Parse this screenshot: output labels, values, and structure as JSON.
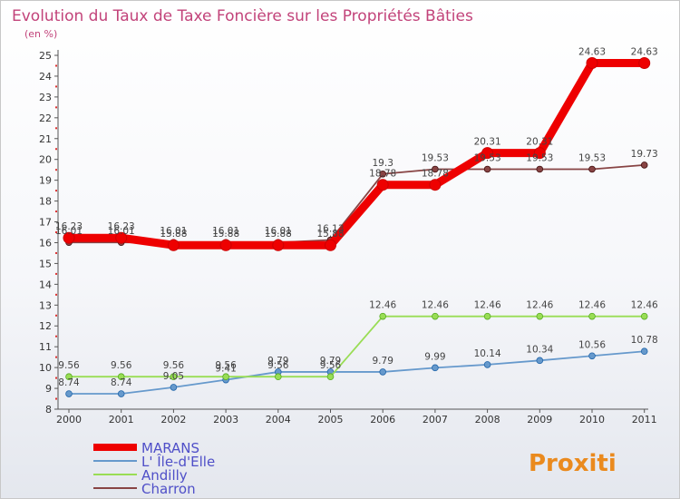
{
  "chart_data": {
    "type": "line",
    "title": "Evolution du Taux de Taxe Foncière sur les Propriétés Bâties",
    "subtitle": "(en %)",
    "x": [
      "2000",
      "2001",
      "2002",
      "2003",
      "2004",
      "2005",
      "2006",
      "2007",
      "2008",
      "2009",
      "2010",
      "2011"
    ],
    "ylim": [
      8,
      25
    ],
    "yticks": [
      "8",
      "9",
      "10",
      "11",
      "12",
      "13",
      "14",
      "15",
      "16",
      "17",
      "18",
      "19",
      "20",
      "21",
      "22",
      "23",
      "24",
      "25"
    ],
    "grid": false,
    "series": [
      {
        "name": "MARANS",
        "color": "#ee0000",
        "values": [
          16.23,
          16.23,
          15.88,
          15.88,
          15.88,
          15.88,
          18.78,
          18.78,
          20.31,
          20.31,
          24.63,
          24.63
        ],
        "labels": [
          "16.23",
          "16.23",
          "15.88",
          "15.88",
          "15.88",
          "15.88",
          "18.78",
          "18.78",
          "20.31",
          "20.31",
          "24.63",
          "24.63"
        ]
      },
      {
        "name": "L' Île-d'Elle",
        "color": "#6699cc",
        "values": [
          8.74,
          8.74,
          9.05,
          9.41,
          9.79,
          9.79,
          9.79,
          9.99,
          10.14,
          10.34,
          10.56,
          10.78
        ],
        "labels": [
          "8.74",
          "8.74",
          "9.05",
          "9.41",
          "9.79",
          "9.79",
          "9.79",
          "9.99",
          "10.14",
          "10.34",
          "10.56",
          "10.78"
        ]
      },
      {
        "name": "Andilly",
        "color": "#99dd55",
        "values": [
          9.56,
          9.56,
          9.56,
          9.56,
          9.56,
          9.56,
          12.46,
          12.46,
          12.46,
          12.46,
          12.46,
          12.46
        ],
        "labels": [
          "9.56",
          "9.56",
          "9.56",
          "9.56",
          "9.56",
          "9.56",
          "12.46",
          "12.46",
          "12.46",
          "12.46",
          "12.46",
          "12.46"
        ]
      },
      {
        "name": "Charron",
        "color": "#884444",
        "values": [
          16.01,
          16.01,
          16.01,
          16.01,
          16.01,
          16.13,
          19.3,
          19.53,
          19.53,
          19.53,
          19.53,
          19.73
        ],
        "labels": [
          "16.01",
          "16.01",
          "16.01",
          "16.01",
          "16.01",
          "16.13",
          "19.3",
          "19.53",
          "19.53",
          "19.53",
          "19.53",
          "19.73"
        ]
      }
    ],
    "legend_position": "bottom-left"
  },
  "logo": {
    "text": "Proxiti"
  }
}
